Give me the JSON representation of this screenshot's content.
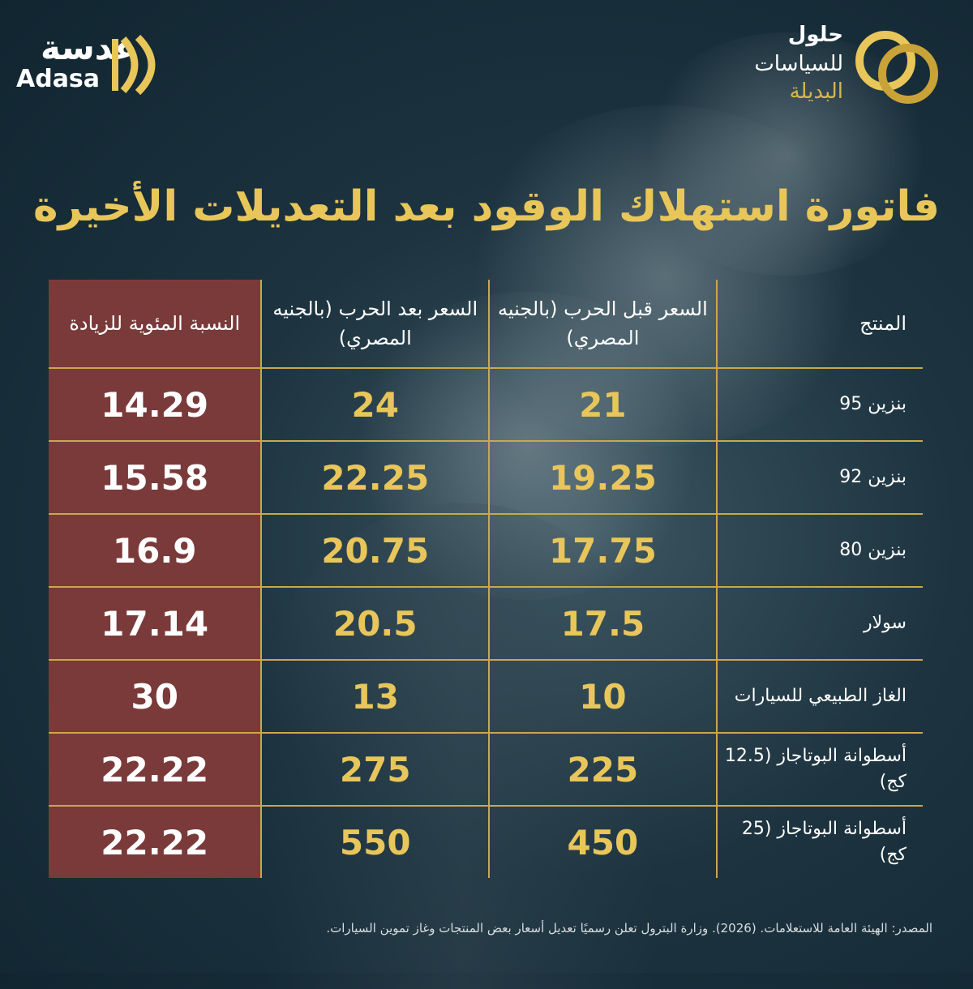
{
  "brand_left": {
    "name_ar": "عدسة",
    "name_en": "Adasa"
  },
  "brand_right": {
    "title": "حلول",
    "line1": "للسياسات",
    "line2": "البديلة"
  },
  "title": "فاتورة استهلاك الوقود بعد التعديلات الأخيرة",
  "table": {
    "headers": {
      "product": "المنتج",
      "before": "السعر قبل الحرب (بالجنيه المصري)",
      "after": "السعر بعد الحرب (بالجنيه المصري)",
      "pct": "النسبة المئوية للزيادة"
    },
    "rows": [
      {
        "product": "بنزين 95",
        "before": "21",
        "after": "24",
        "pct": "14.29"
      },
      {
        "product": "بنزين 92",
        "before": "19.25",
        "after": "22.25",
        "pct": "15.58"
      },
      {
        "product": "بنزين 80",
        "before": "17.75",
        "after": "20.75",
        "pct": "16.9"
      },
      {
        "product": "سولار",
        "before": "17.5",
        "after": "20.5",
        "pct": "17.14"
      },
      {
        "product": "الغاز الطبيعي للسيارات",
        "before": "10",
        "after": "13",
        "pct": "30"
      },
      {
        "product": "أسطوانة البوتاجاز (12.5 كج)",
        "before": "225",
        "after": "275",
        "pct": "22.22"
      },
      {
        "product": "أسطوانة البوتاجاز (25 كج)",
        "before": "450",
        "after": "550",
        "pct": "22.22"
      }
    ]
  },
  "source": "المصدر: الهيئة العامة للاستعلامات. (2026). وزارة البترول تعلن رسميًا تعديل أسعار بعض المنتجات وغاز تموين السيارات.",
  "colors": {
    "background": "#1d3440",
    "accent_gold": "#e8c65a",
    "pct_column": "#7a3a3a"
  }
}
